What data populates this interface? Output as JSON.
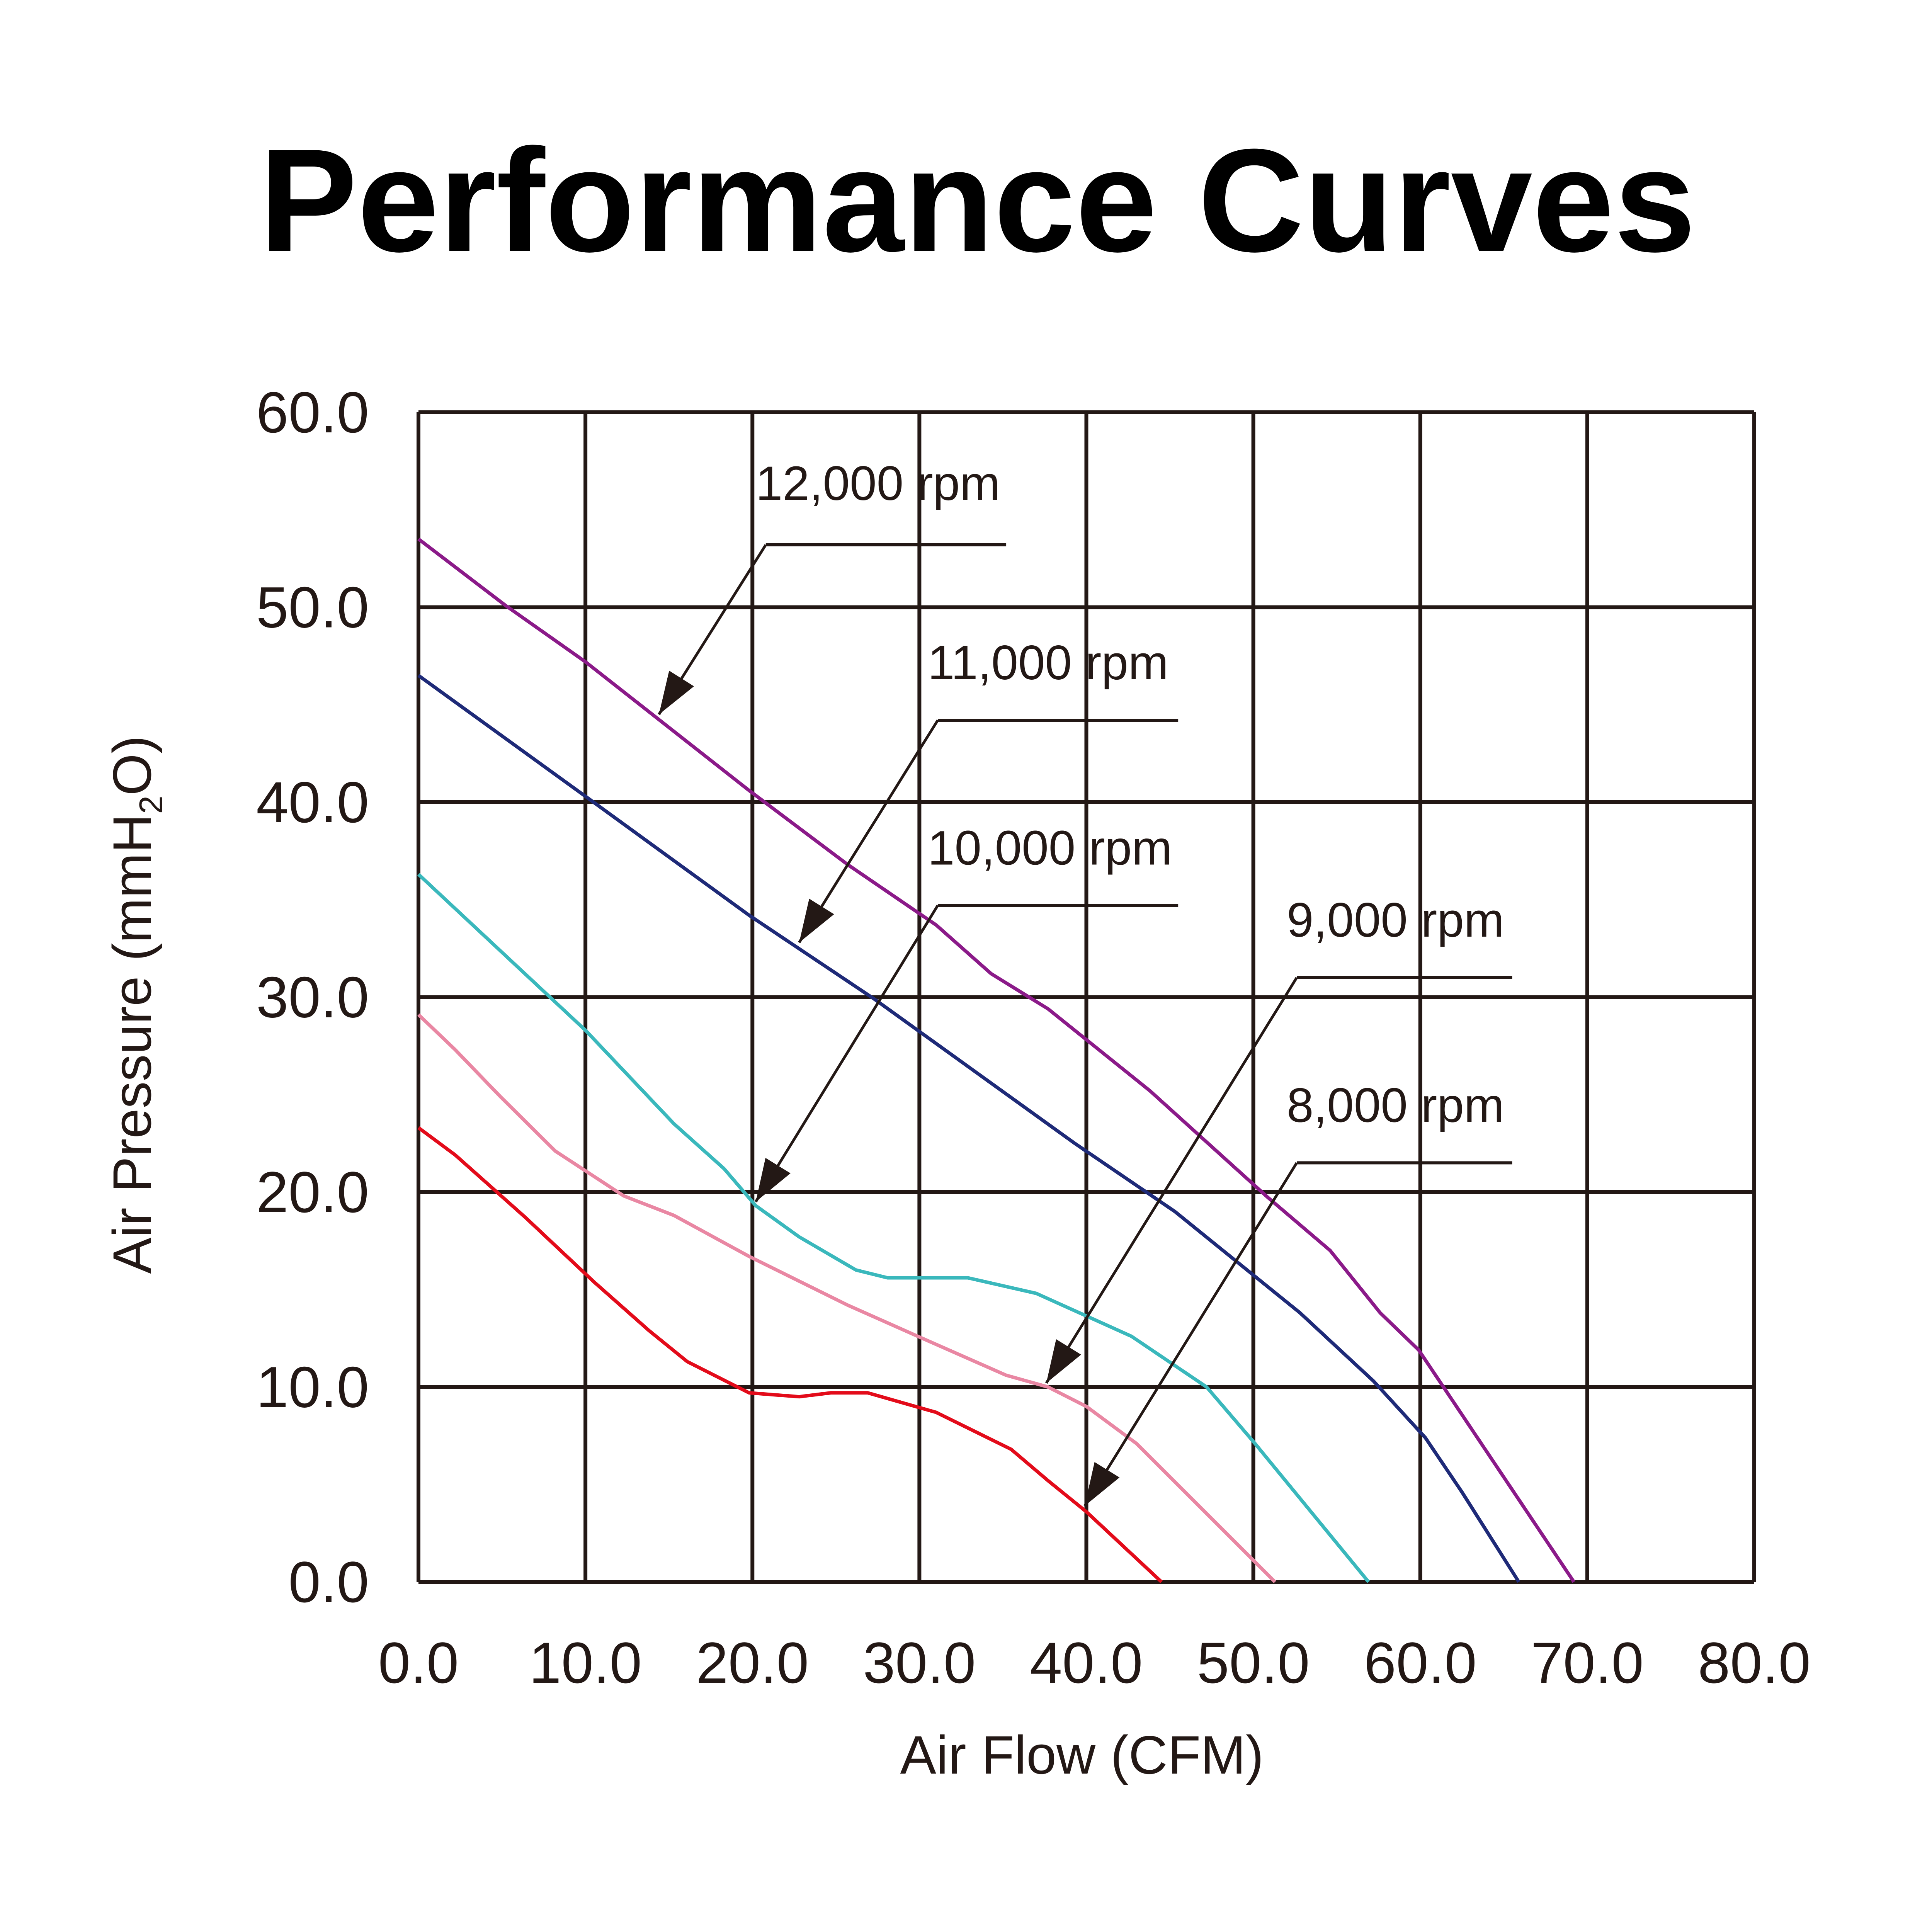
{
  "chart_data": {
    "type": "line",
    "title": "Performance Curves",
    "xlabel": "Air Flow (CFM)",
    "ylabel": "Air Pressure (mmH2O)",
    "ylabel_parts": {
      "pre": "Air Pressure (mmH",
      "sub": "2",
      "post": "O)"
    },
    "xlim": [
      0,
      80
    ],
    "ylim": [
      0,
      60
    ],
    "grid": true,
    "xticks": [
      "0.0",
      "10.0",
      "20.0",
      "30.0",
      "40.0",
      "50.0",
      "60.0",
      "70.0",
      "80.0"
    ],
    "yticks": [
      "0.0",
      "10.0",
      "20.0",
      "30.0",
      "40.0",
      "50.0",
      "60.0"
    ],
    "series": [
      {
        "name": "12,000 rpm",
        "color": "#8B1A89",
        "points": [
          [
            0,
            53.5
          ],
          [
            5.2,
            50.1
          ],
          [
            10,
            47.2
          ],
          [
            19.8,
            40.6
          ],
          [
            25.7,
            36.8
          ],
          [
            31,
            33.7
          ],
          [
            34.3,
            31.2
          ],
          [
            37.7,
            29.4
          ],
          [
            43.8,
            25.2
          ],
          [
            50.9,
            19.7
          ],
          [
            54.6,
            17
          ],
          [
            57.6,
            13.8
          ],
          [
            59.9,
            11.9
          ],
          [
            69.2,
            0
          ]
        ]
      },
      {
        "name": "11,000 rpm",
        "color": "#1E2A78",
        "points": [
          [
            0,
            46.5
          ],
          [
            10,
            40.3
          ],
          [
            19.8,
            34.2
          ],
          [
            27.3,
            29.9
          ],
          [
            39.3,
            22.5
          ],
          [
            45.3,
            19
          ],
          [
            52.8,
            13.8
          ],
          [
            57.2,
            10.3
          ],
          [
            60.3,
            7.4
          ],
          [
            62.5,
            4.6
          ],
          [
            65.9,
            0
          ]
        ]
      },
      {
        "name": "10,000 rpm",
        "color": "#3AB8BC",
        "points": [
          [
            0,
            36.3
          ],
          [
            10,
            28.3
          ],
          [
            15.3,
            23.5
          ],
          [
            18.3,
            21.2
          ],
          [
            20.2,
            19.3
          ],
          [
            22.8,
            17.7
          ],
          [
            26.2,
            16
          ],
          [
            28.1,
            15.6
          ],
          [
            32.9,
            15.6
          ],
          [
            37,
            14.8
          ],
          [
            42.7,
            12.6
          ],
          [
            47.2,
            10
          ],
          [
            50.1,
            7.1
          ],
          [
            56.9,
            0
          ]
        ]
      },
      {
        "name": "9,000 rpm",
        "color": "#E987A3",
        "points": [
          [
            0,
            29.1
          ],
          [
            2.2,
            27.3
          ],
          [
            4.9,
            24.9
          ],
          [
            8.2,
            22.1
          ],
          [
            12.3,
            19.8
          ],
          [
            15.3,
            18.8
          ],
          [
            19.8,
            16.7
          ],
          [
            25.7,
            14.2
          ],
          [
            29.9,
            12.6
          ],
          [
            35.2,
            10.6
          ],
          [
            37.7,
            10
          ],
          [
            40,
            9
          ],
          [
            43,
            7.1
          ],
          [
            51.3,
            0
          ]
        ]
      },
      {
        "name": "8,000 rpm",
        "color": "#E30B1A",
        "points": [
          [
            0,
            23.3
          ],
          [
            2.2,
            21.9
          ],
          [
            6.4,
            18.7
          ],
          [
            10.5,
            15.4
          ],
          [
            13.8,
            12.9
          ],
          [
            16.1,
            11.3
          ],
          [
            19.8,
            9.7
          ],
          [
            22.8,
            9.5
          ],
          [
            24.7,
            9.7
          ],
          [
            26.9,
            9.7
          ],
          [
            31,
            8.7
          ],
          [
            35.5,
            6.8
          ],
          [
            37.7,
            5.2
          ],
          [
            40,
            3.6
          ],
          [
            44.5,
            0
          ]
        ]
      }
    ],
    "annotations": [
      {
        "text": "12,000 rpm",
        "series": "12,000 rpm",
        "label_at": [
          20.2,
          55.5
        ],
        "elbow": [
          20.8,
          53.2
        ],
        "line_end": [
          35.2,
          53.2
        ],
        "arrow_to": [
          14.4,
          44.5
        ]
      },
      {
        "text": "11,000 rpm",
        "series": "11,000 rpm",
        "label_at": [
          30.5,
          46.3
        ],
        "elbow": [
          31.1,
          44.2
        ],
        "line_end": [
          45.5,
          44.2
        ],
        "arrow_to": [
          22.8,
          32.8
        ]
      },
      {
        "text": "10,000 rpm",
        "series": "10,000 rpm",
        "label_at": [
          30.5,
          36.8
        ],
        "elbow": [
          31.1,
          34.7
        ],
        "line_end": [
          45.5,
          34.7
        ],
        "arrow_to": [
          20.2,
          19.5
        ]
      },
      {
        "text": "9,000 rpm",
        "series": "9,000 rpm",
        "label_at": [
          52,
          33.1
        ],
        "elbow": [
          52.6,
          31
        ],
        "line_end": [
          65.5,
          31
        ],
        "arrow_to": [
          37.6,
          10.2
        ]
      },
      {
        "text": "8,000 rpm",
        "series": "8,000 rpm",
        "label_at": [
          52,
          23.6
        ],
        "elbow": [
          52.6,
          21.5
        ],
        "line_end": [
          65.5,
          21.5
        ],
        "arrow_to": [
          39.9,
          3.9
        ]
      }
    ]
  }
}
